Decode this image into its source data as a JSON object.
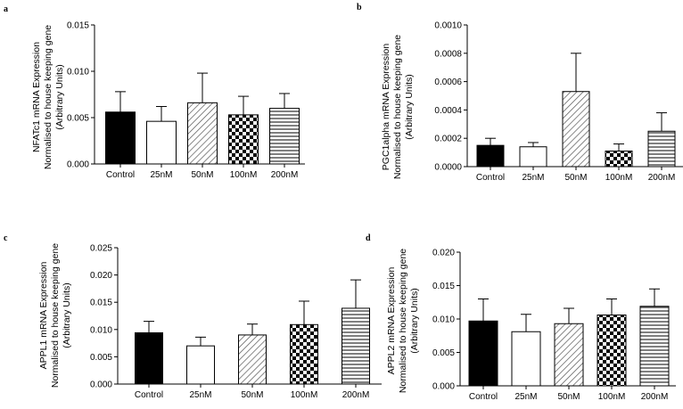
{
  "chart_data": [
    {
      "panel": "a",
      "type": "bar",
      "categories": [
        "Control",
        "25nM",
        "50nM",
        "100nM",
        "200nM"
      ],
      "values": [
        0.0056,
        0.0046,
        0.0066,
        0.0053,
        0.006
      ],
      "errors": [
        0.0022,
        0.0016,
        0.0032,
        0.002,
        0.0016
      ],
      "ylabel": [
        "NFATc1 mRNA Expression",
        "Normalised to house keeping gene",
        "(Arbitrary Units)"
      ],
      "ylim": [
        0,
        0.015
      ],
      "yticks": [
        0,
        0.005,
        0.01,
        0.015
      ],
      "ytick_labels": [
        "0.000",
        "0.005",
        "0.010",
        "0.015"
      ]
    },
    {
      "panel": "b",
      "type": "bar",
      "categories": [
        "Control",
        "25nM",
        "50nM",
        "100nM",
        "200nM"
      ],
      "values": [
        0.00015,
        0.00014,
        0.00053,
        0.00011,
        0.00025
      ],
      "errors": [
        5e-05,
        3e-05,
        0.00027,
        5e-05,
        0.00013
      ],
      "ylabel": [
        "PGC1alpha mRNA Expression",
        "Normalised to house keeping gene",
        "(Arbitrary Units)"
      ],
      "ylim": [
        0,
        0.001
      ],
      "yticks": [
        0,
        0.0002,
        0.0004,
        0.0006,
        0.0008,
        0.001
      ],
      "ytick_labels": [
        "0.0000",
        "0.0002",
        "0.0004",
        "0.0006",
        "0.0008",
        "0.0010"
      ]
    },
    {
      "panel": "c",
      "type": "bar",
      "categories": [
        "Control",
        "25nM",
        "50nM",
        "100nM",
        "200nM"
      ],
      "values": [
        0.0094,
        0.007,
        0.009,
        0.0109,
        0.0139
      ],
      "errors": [
        0.0021,
        0.0016,
        0.002,
        0.0043,
        0.0052
      ],
      "ylabel": [
        "APPL1 mRNA Expression",
        "Normalised to house keeping gene",
        "(Arbitrary Units)"
      ],
      "ylim": [
        0,
        0.025
      ],
      "yticks": [
        0,
        0.005,
        0.01,
        0.015,
        0.02,
        0.025
      ],
      "ytick_labels": [
        "0.000",
        "0.005",
        "0.010",
        "0.015",
        "0.020",
        "0.025"
      ]
    },
    {
      "panel": "d",
      "type": "bar",
      "categories": [
        "Control",
        "25nM",
        "50nM",
        "100nM",
        "200nM"
      ],
      "values": [
        0.0097,
        0.0081,
        0.0093,
        0.0106,
        0.0119
      ],
      "errors": [
        0.0033,
        0.0026,
        0.0023,
        0.0024,
        0.0026
      ],
      "ylabel": [
        "APPL2 mRNA Expression",
        "Normalised to house keeping gene",
        "(Arbitrary Units)"
      ],
      "ylim": [
        0,
        0.02
      ],
      "yticks": [
        0,
        0.005,
        0.01,
        0.015,
        0.02
      ],
      "ytick_labels": [
        "0.000",
        "0.005",
        "0.010",
        "0.015",
        "0.020"
      ]
    }
  ],
  "bar_fills": [
    "solid-black",
    "white",
    "diagonal-hatch",
    "checkerboard",
    "horizontal-lines"
  ]
}
